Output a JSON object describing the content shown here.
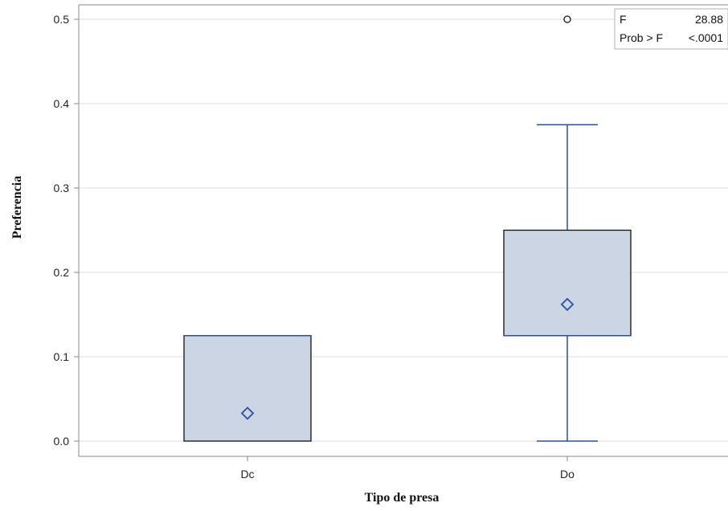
{
  "chart_data": {
    "type": "box",
    "xlabel": "Tipo de presa",
    "ylabel": "Preferencia",
    "ylim": [
      0,
      0.52
    ],
    "yticks": [
      "0.0",
      "0.1",
      "0.2",
      "0.3",
      "0.4",
      "0.5"
    ],
    "ytick_values": [
      0,
      0.1,
      0.2,
      0.3,
      0.4,
      0.5
    ],
    "categories": [
      "Dc",
      "Do"
    ],
    "boxes": [
      {
        "category": "Dc",
        "whisker_low": 0.0,
        "q1": 0.0,
        "median": 0.125,
        "q3": 0.125,
        "whisker_high": 0.125,
        "mean": 0.033,
        "outliers": []
      },
      {
        "category": "Do",
        "whisker_low": 0.0,
        "q1": 0.125,
        "median": 0.125,
        "q3": 0.25,
        "whisker_high": 0.375,
        "mean": 0.162,
        "outliers": [
          0.5
        ]
      }
    ],
    "grid": true,
    "stats_box": {
      "placement": "top-right",
      "rows": [
        {
          "label": "F",
          "value": "28.88"
        },
        {
          "label": "Prob > F",
          "value": "<.0001"
        }
      ]
    },
    "colors": {
      "box_fill": "#cbd5e3",
      "box_edge": "#111111",
      "whisker": "#2b4ea2",
      "mean_marker": "#2b4ea2",
      "grid": "#dcdcdc",
      "axis": "#888888"
    }
  }
}
